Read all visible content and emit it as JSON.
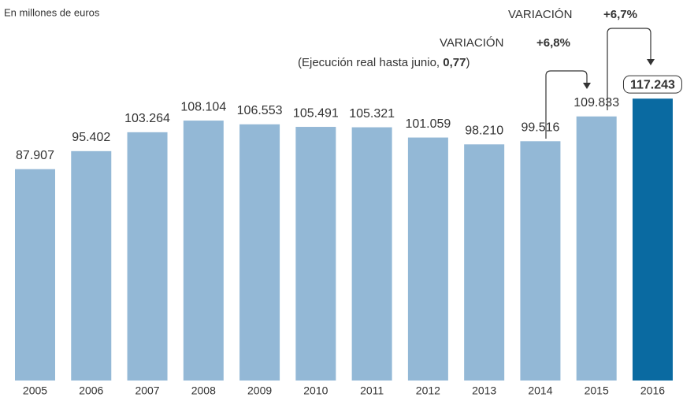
{
  "chart_data": {
    "type": "bar",
    "subtitle": "En millones de euros",
    "categories": [
      "2005",
      "2006",
      "2007",
      "2008",
      "2009",
      "2010",
      "2011",
      "2012",
      "2013",
      "2014",
      "2015",
      "2016"
    ],
    "values": [
      87907,
      95402,
      103264,
      108104,
      106553,
      105491,
      105321,
      101059,
      98210,
      99516,
      109833,
      117243
    ],
    "value_labels": [
      "87.907",
      "95.402",
      "103.264",
      "108.104",
      "106.553",
      "105.491",
      "105.321",
      "101.059",
      "98.210",
      "99.516",
      "109.833",
      "117.243"
    ],
    "colors": [
      "#93b8d6",
      "#93b8d6",
      "#93b8d6",
      "#93b8d6",
      "#93b8d6",
      "#93b8d6",
      "#93b8d6",
      "#93b8d6",
      "#93b8d6",
      "#93b8d6",
      "#93b8d6",
      "#0a6aa1"
    ],
    "annotations": [
      {
        "label": "VARIACIÓN",
        "change": "+6,8%",
        "note": "(Ejecución real hasta junio, ",
        "note_bold": "0,77",
        "note_end": ")"
      },
      {
        "label": "VARIACIÓN",
        "change": "+6,7%"
      }
    ]
  }
}
